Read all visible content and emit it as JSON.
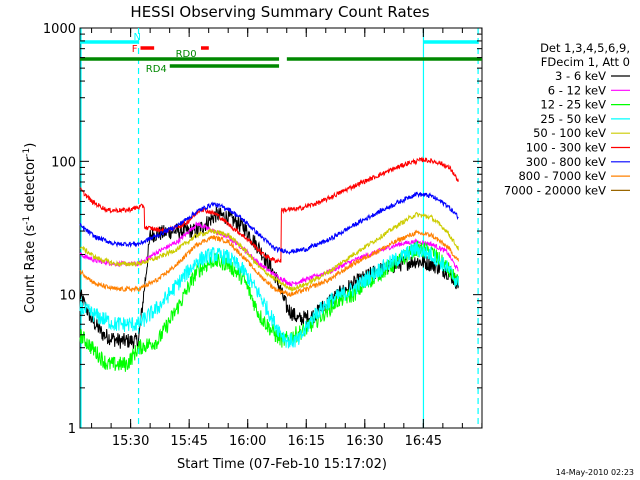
{
  "chart_data": {
    "type": "line",
    "title": "HESSI Observing Summary Count Rates",
    "xlabel": "Start Time (07-Feb-10 15:17:02)",
    "ylabel": "Count Rate (s^-1 detector^-1)",
    "ylabel_parts": [
      "Count Rate (s",
      "-1",
      " detector",
      "-1",
      ")"
    ],
    "y_scale": "log",
    "ylim": [
      1,
      1000
    ],
    "xlim_minutes": [
      0,
      103
    ],
    "x_tick_labels": [
      "15:30",
      "15:45",
      "16:00",
      "16:15",
      "16:30",
      "16:45"
    ],
    "x_tick_minutes": [
      12.97,
      27.97,
      42.97,
      57.97,
      72.97,
      87.97
    ],
    "y_tick_labels": [
      "1",
      "10",
      "100",
      "1000"
    ],
    "y_tick_values": [
      1,
      10,
      100,
      1000
    ],
    "legend_placement": "right",
    "legend_header": [
      "Det 1,3,4,5,6,9,",
      "FDecim 1, Att 0"
    ],
    "timestamp": "14-May-2010 02:23",
    "series": [
      {
        "name": "3 - 6 keV",
        "color": "#000000",
        "points": [
          [
            0,
            10
          ],
          [
            3,
            6.5
          ],
          [
            6,
            5
          ],
          [
            10,
            4.5
          ],
          [
            15,
            4.5
          ],
          [
            18,
            28
          ],
          [
            24,
            30
          ],
          [
            30,
            30
          ],
          [
            35,
            40
          ],
          [
            38,
            38
          ],
          [
            42,
            32
          ],
          [
            46,
            22
          ],
          [
            50,
            14
          ],
          [
            53,
            8
          ],
          [
            56,
            6.5
          ],
          [
            60,
            7
          ],
          [
            64,
            9
          ],
          [
            70,
            12
          ],
          [
            76,
            15
          ],
          [
            82,
            17
          ],
          [
            86,
            18
          ],
          [
            90,
            17
          ],
          [
            94,
            15
          ],
          [
            97,
            12
          ]
        ]
      },
      {
        "name": "6 - 12 keV",
        "color": "#ff00ff",
        "points": [
          [
            0,
            20
          ],
          [
            4,
            18
          ],
          [
            9,
            17
          ],
          [
            15,
            17
          ],
          [
            20,
            21
          ],
          [
            25,
            25
          ],
          [
            30,
            34
          ],
          [
            34,
            30
          ],
          [
            38,
            27
          ],
          [
            42,
            22
          ],
          [
            46,
            17
          ],
          [
            50,
            14
          ],
          [
            54,
            12
          ],
          [
            58,
            13
          ],
          [
            64,
            15
          ],
          [
            70,
            18
          ],
          [
            76,
            21
          ],
          [
            82,
            24
          ],
          [
            86,
            25
          ],
          [
            90,
            24
          ],
          [
            94,
            21
          ],
          [
            97,
            15
          ]
        ]
      },
      {
        "name": "12 - 25 keV",
        "color": "#00ff00",
        "points": [
          [
            0,
            5
          ],
          [
            3,
            4
          ],
          [
            7,
            3
          ],
          [
            12,
            3
          ],
          [
            15,
            4
          ],
          [
            20,
            4.5
          ],
          [
            25,
            8
          ],
          [
            30,
            15
          ],
          [
            34,
            18
          ],
          [
            38,
            17
          ],
          [
            42,
            13
          ],
          [
            46,
            7
          ],
          [
            50,
            5
          ],
          [
            52,
            4.5
          ],
          [
            55,
            5
          ],
          [
            58,
            5.5
          ],
          [
            62,
            7
          ],
          [
            66,
            9
          ],
          [
            70,
            10
          ],
          [
            76,
            14
          ],
          [
            82,
            18
          ],
          [
            86,
            22
          ],
          [
            90,
            21
          ],
          [
            94,
            16
          ],
          [
            97,
            12
          ]
        ]
      },
      {
        "name": "25 - 50 keV",
        "color": "#00ffff",
        "points": [
          [
            0,
            8
          ],
          [
            4,
            7
          ],
          [
            9,
            6
          ],
          [
            15,
            6
          ],
          [
            20,
            8
          ],
          [
            25,
            12
          ],
          [
            30,
            18
          ],
          [
            34,
            20
          ],
          [
            38,
            19
          ],
          [
            42,
            15
          ],
          [
            46,
            10
          ],
          [
            50,
            6
          ],
          [
            53,
            4.5
          ],
          [
            56,
            4.5
          ],
          [
            60,
            7
          ],
          [
            64,
            9
          ],
          [
            70,
            11
          ],
          [
            76,
            15
          ],
          [
            82,
            19
          ],
          [
            86,
            22
          ],
          [
            90,
            20
          ],
          [
            94,
            16
          ],
          [
            97,
            12
          ]
        ]
      },
      {
        "name": "50 - 100 keV",
        "color": "#cccc00",
        "points": [
          [
            0,
            23
          ],
          [
            4,
            19
          ],
          [
            9,
            17
          ],
          [
            15,
            17
          ],
          [
            20,
            19
          ],
          [
            25,
            22
          ],
          [
            30,
            28
          ],
          [
            34,
            30
          ],
          [
            38,
            28
          ],
          [
            42,
            22
          ],
          [
            46,
            16
          ],
          [
            50,
            13
          ],
          [
            54,
            11
          ],
          [
            58,
            12
          ],
          [
            64,
            15
          ],
          [
            70,
            20
          ],
          [
            76,
            26
          ],
          [
            82,
            34
          ],
          [
            86,
            40
          ],
          [
            90,
            38
          ],
          [
            94,
            30
          ],
          [
            97,
            22
          ]
        ]
      },
      {
        "name": "100 - 300 keV",
        "color": "#ff0000",
        "points": [
          [
            0,
            62
          ],
          [
            3,
            50
          ],
          [
            7,
            43
          ],
          [
            12,
            43
          ],
          [
            16,
            46
          ],
          [
            16.5,
            32
          ],
          [
            22,
            30
          ],
          [
            27,
            34
          ],
          [
            31,
            44
          ],
          [
            35,
            40
          ],
          [
            39,
            32
          ],
          [
            43,
            26
          ],
          [
            47,
            20
          ],
          [
            50,
            18
          ],
          [
            51,
            18
          ],
          [
            51.5,
            43
          ],
          [
            56,
            44
          ],
          [
            62,
            50
          ],
          [
            70,
            65
          ],
          [
            78,
            82
          ],
          [
            84,
            97
          ],
          [
            88,
            103
          ],
          [
            92,
            98
          ],
          [
            95,
            88
          ],
          [
            97,
            70
          ]
        ]
      },
      {
        "name": "300 - 800 keV",
        "color": "#0000ff",
        "points": [
          [
            0,
            33
          ],
          [
            4,
            27
          ],
          [
            9,
            24
          ],
          [
            15,
            24
          ],
          [
            20,
            28
          ],
          [
            25,
            33
          ],
          [
            30,
            42
          ],
          [
            34,
            48
          ],
          [
            38,
            44
          ],
          [
            42,
            36
          ],
          [
            46,
            28
          ],
          [
            50,
            22
          ],
          [
            54,
            21
          ],
          [
            58,
            22
          ],
          [
            64,
            26
          ],
          [
            70,
            33
          ],
          [
            76,
            41
          ],
          [
            82,
            50
          ],
          [
            86,
            57
          ],
          [
            90,
            55
          ],
          [
            94,
            47
          ],
          [
            97,
            38
          ]
        ]
      },
      {
        "name": "800 - 7000 keV",
        "color": "#ff8000",
        "points": [
          [
            0,
            15
          ],
          [
            4,
            12
          ],
          [
            9,
            11
          ],
          [
            15,
            11
          ],
          [
            20,
            13
          ],
          [
            25,
            17
          ],
          [
            30,
            24
          ],
          [
            34,
            27
          ],
          [
            38,
            25
          ],
          [
            42,
            19
          ],
          [
            46,
            14
          ],
          [
            50,
            11
          ],
          [
            54,
            10
          ],
          [
            58,
            11
          ],
          [
            64,
            13
          ],
          [
            70,
            17
          ],
          [
            76,
            21
          ],
          [
            82,
            26
          ],
          [
            86,
            29
          ],
          [
            90,
            28
          ],
          [
            94,
            23
          ],
          [
            97,
            18
          ]
        ]
      },
      {
        "name": "7000 - 20000 keV",
        "color": "#996600",
        "points": []
      }
    ],
    "flags": [
      {
        "label": "N",
        "color": "#00ffff",
        "segments": [
          [
            0,
            15
          ]
        ],
        "level": "top"
      },
      {
        "label": "F",
        "color": "#ff0000",
        "segments": [
          [
            15.5,
            19
          ],
          [
            31,
            33
          ]
        ],
        "level": "mid"
      },
      {
        "label": "RD0",
        "color": "#008800",
        "segments": [
          [
            0,
            51
          ],
          [
            53,
            103
          ]
        ],
        "level": "upper"
      },
      {
        "label": "RD4",
        "color": "#008800",
        "segments": [
          [
            23,
            51
          ]
        ],
        "level": "lower"
      },
      {
        "label": "",
        "color": "#00ffff",
        "segments": [
          [
            88,
            102
          ]
        ],
        "level": "top"
      }
    ],
    "vertical_lines": [
      {
        "x": 0,
        "color": "#00ffff",
        "style": "solid"
      },
      {
        "x": 15,
        "color": "#00ffff",
        "style": "dashed"
      },
      {
        "x": 88,
        "color": "#00ffff",
        "style": "solid"
      },
      {
        "x": 102,
        "color": "#00ffff",
        "style": "dashed"
      }
    ]
  }
}
